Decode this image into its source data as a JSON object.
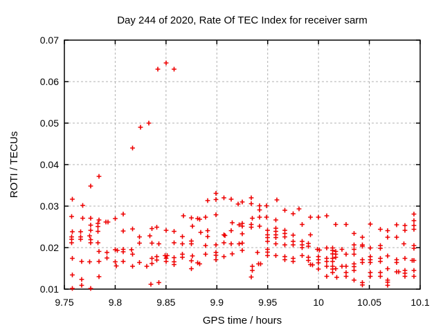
{
  "chart_data": {
    "type": "scatter",
    "title": "Day 244 of 2020, Rate Of TEC Index for receiver sarm",
    "xlabel": "GPS time / hours",
    "ylabel": "ROTI / TECUs",
    "xlim": [
      9.75,
      10.1
    ],
    "ylim": [
      0.01,
      0.07
    ],
    "grid": "dashed",
    "legend": "none",
    "marker": "plus",
    "marker_color": "#ee0000",
    "grid_color": "#b0b0b0",
    "border_color": "#000000",
    "background_color": "#ffffff",
    "x_ticks": [
      [
        9.75,
        "9.75"
      ],
      [
        9.8,
        "9.8"
      ],
      [
        9.85,
        "9.85"
      ],
      [
        9.9,
        "9.9"
      ],
      [
        9.95,
        "9.95"
      ],
      [
        10.0,
        "10"
      ],
      [
        10.05,
        "10.05"
      ],
      [
        10.1,
        "10.1"
      ]
    ],
    "y_ticks": [
      [
        0.01,
        "0.01"
      ],
      [
        0.02,
        "0.02"
      ],
      [
        0.03,
        "0.03"
      ],
      [
        0.04,
        "0.04"
      ],
      [
        0.05,
        "0.05"
      ],
      [
        0.06,
        "0.06"
      ],
      [
        0.07,
        "0.07"
      ]
    ],
    "series_name": "ROTI",
    "points": [
      [
        9.85,
        0.0645
      ],
      [
        9.842,
        0.063
      ],
      [
        9.858,
        0.063
      ],
      [
        9.833,
        0.05
      ],
      [
        9.825,
        0.049
      ],
      [
        9.817,
        0.044
      ],
      [
        9.784,
        0.0372
      ],
      [
        9.776,
        0.0348
      ],
      [
        9.758,
        0.0317
      ],
      [
        9.768,
        0.0302
      ],
      [
        9.757,
        0.0275
      ],
      [
        9.768,
        0.0271
      ],
      [
        9.776,
        0.0271
      ],
      [
        9.784,
        0.0267
      ],
      [
        9.791,
        0.0262
      ],
      [
        9.793,
        0.0262
      ],
      [
        9.8,
        0.027
      ],
      [
        9.808,
        0.0281
      ],
      [
        9.776,
        0.0254
      ],
      [
        9.783,
        0.0258
      ],
      [
        9.783,
        0.0251
      ],
      [
        9.758,
        0.0238
      ],
      [
        9.766,
        0.0238
      ],
      [
        9.776,
        0.0242
      ],
      [
        9.783,
        0.0239
      ],
      [
        9.775,
        0.0228
      ],
      [
        9.808,
        0.024
      ],
      [
        9.817,
        0.0245
      ],
      [
        9.757,
        0.0226
      ],
      [
        9.757,
        0.022
      ],
      [
        9.766,
        0.0226
      ],
      [
        9.766,
        0.022
      ],
      [
        9.776,
        0.0219
      ],
      [
        9.783,
        0.0212
      ],
      [
        9.776,
        0.0212
      ],
      [
        9.757,
        0.0212
      ],
      [
        9.784,
        0.0191
      ],
      [
        9.792,
        0.0188
      ],
      [
        9.792,
        0.0175
      ],
      [
        9.8,
        0.0195
      ],
      [
        9.802,
        0.0193
      ],
      [
        9.808,
        0.0196
      ],
      [
        9.808,
        0.019
      ],
      [
        9.816,
        0.0195
      ],
      [
        9.817,
        0.0184
      ],
      [
        9.824,
        0.0226
      ],
      [
        9.824,
        0.0211
      ],
      [
        9.834,
        0.0228
      ],
      [
        9.758,
        0.0174
      ],
      [
        9.767,
        0.0167
      ],
      [
        9.775,
        0.0166
      ],
      [
        9.784,
        0.0167
      ],
      [
        9.8,
        0.0166
      ],
      [
        9.801,
        0.0156
      ],
      [
        9.808,
        0.0167
      ],
      [
        9.817,
        0.0155
      ],
      [
        9.824,
        0.0164
      ],
      [
        9.831,
        0.0155
      ],
      [
        9.758,
        0.0134
      ],
      [
        9.784,
        0.013
      ],
      [
        9.767,
        0.0123
      ],
      [
        9.767,
        0.0109
      ],
      [
        9.758,
        0.0102
      ],
      [
        9.776,
        0.0102
      ],
      [
        9.835,
        0.0112
      ],
      [
        9.899,
        0.0331
      ],
      [
        9.891,
        0.0313
      ],
      [
        9.899,
        0.0316
      ],
      [
        9.907,
        0.032
      ],
      [
        9.914,
        0.0317
      ],
      [
        9.921,
        0.0305
      ],
      [
        9.867,
        0.0277
      ],
      [
        9.875,
        0.0272
      ],
      [
        9.881,
        0.027
      ],
      [
        9.883,
        0.0268
      ],
      [
        9.889,
        0.0273
      ],
      [
        9.899,
        0.0279
      ],
      [
        9.876,
        0.0252
      ],
      [
        9.841,
        0.0249
      ],
      [
        9.85,
        0.0242
      ],
      [
        9.858,
        0.0239
      ],
      [
        9.884,
        0.0237
      ],
      [
        9.891,
        0.0241
      ],
      [
        9.891,
        0.0227
      ],
      [
        9.866,
        0.0227
      ],
      [
        9.915,
        0.026
      ],
      [
        9.922,
        0.0255
      ],
      [
        9.907,
        0.0231
      ],
      [
        9.908,
        0.0229
      ],
      [
        9.914,
        0.0241
      ],
      [
        9.836,
        0.0246
      ],
      [
        9.843,
        0.0209
      ],
      [
        9.836,
        0.0211
      ],
      [
        9.858,
        0.0212
      ],
      [
        9.866,
        0.0209
      ],
      [
        9.875,
        0.0216
      ],
      [
        9.875,
        0.0209
      ],
      [
        9.889,
        0.0205
      ],
      [
        9.899,
        0.0207
      ],
      [
        9.907,
        0.0212
      ],
      [
        9.914,
        0.0209
      ],
      [
        9.922,
        0.0209
      ],
      [
        9.915,
        0.0185
      ],
      [
        9.899,
        0.0188
      ],
      [
        9.899,
        0.0182
      ],
      [
        9.889,
        0.0184
      ],
      [
        9.876,
        0.018
      ],
      [
        9.866,
        0.0184
      ],
      [
        9.866,
        0.0177
      ],
      [
        9.858,
        0.0176
      ],
      [
        9.849,
        0.0181
      ],
      [
        9.851,
        0.0181
      ],
      [
        9.85,
        0.0174
      ],
      [
        9.85,
        0.0167
      ],
      [
        9.841,
        0.0178
      ],
      [
        9.841,
        0.017
      ],
      [
        9.836,
        0.0174
      ],
      [
        9.836,
        0.0162
      ],
      [
        9.858,
        0.0166
      ],
      [
        9.858,
        0.0159
      ],
      [
        9.875,
        0.0168
      ],
      [
        9.881,
        0.0163
      ],
      [
        9.883,
        0.0161
      ],
      [
        9.899,
        0.0171
      ],
      [
        9.907,
        0.0178
      ],
      [
        9.875,
        0.0149
      ],
      [
        9.843,
        0.0116
      ],
      [
        9.934,
        0.032
      ],
      [
        9.925,
        0.031
      ],
      [
        9.934,
        0.0306
      ],
      [
        9.942,
        0.0301
      ],
      [
        9.949,
        0.0301
      ],
      [
        9.959,
        0.0315
      ],
      [
        9.942,
        0.0291
      ],
      [
        9.967,
        0.029
      ],
      [
        9.975,
        0.0282
      ],
      [
        9.981,
        0.0293
      ],
      [
        9.935,
        0.0271
      ],
      [
        9.942,
        0.0273
      ],
      [
        9.949,
        0.0273
      ],
      [
        9.958,
        0.0267
      ],
      [
        9.992,
        0.0273
      ],
      [
        10.0,
        0.0273
      ],
      [
        10.008,
        0.0277
      ],
      [
        9.925,
        0.0258
      ],
      [
        9.925,
        0.0252
      ],
      [
        9.934,
        0.0256
      ],
      [
        9.934,
        0.0249
      ],
      [
        9.942,
        0.0252
      ],
      [
        9.95,
        0.0242
      ],
      [
        9.958,
        0.0247
      ],
      [
        9.958,
        0.0239
      ],
      [
        9.967,
        0.0242
      ],
      [
        9.984,
        0.0256
      ],
      [
        9.925,
        0.0233
      ],
      [
        9.95,
        0.0231
      ],
      [
        9.95,
        0.0224
      ],
      [
        9.958,
        0.0231
      ],
      [
        9.958,
        0.0224
      ],
      [
        9.967,
        0.0234
      ],
      [
        9.967,
        0.0226
      ],
      [
        9.975,
        0.023
      ],
      [
        9.992,
        0.0231
      ],
      [
        9.925,
        0.0211
      ],
      [
        9.95,
        0.0215
      ],
      [
        9.95,
        0.0196
      ],
      [
        9.95,
        0.0189
      ],
      [
        9.958,
        0.0209
      ],
      [
        9.967,
        0.0207
      ],
      [
        9.975,
        0.0215
      ],
      [
        9.975,
        0.0207
      ],
      [
        9.984,
        0.0215
      ],
      [
        9.984,
        0.0207
      ],
      [
        9.984,
        0.02
      ],
      [
        9.99,
        0.021
      ],
      [
        9.99,
        0.0203
      ],
      [
        9.999,
        0.0196
      ],
      [
        10.001,
        0.0194
      ],
      [
        10.008,
        0.0199
      ],
      [
        9.925,
        0.0193
      ],
      [
        9.94,
        0.0188
      ],
      [
        9.95,
        0.0181
      ],
      [
        9.958,
        0.0181
      ],
      [
        9.967,
        0.0178
      ],
      [
        9.967,
        0.0171
      ],
      [
        9.975,
        0.0174
      ],
      [
        9.975,
        0.0167
      ],
      [
        9.984,
        0.0181
      ],
      [
        9.99,
        0.0177
      ],
      [
        9.99,
        0.0169
      ],
      [
        10.0,
        0.0178
      ],
      [
        10.0,
        0.0171
      ],
      [
        10.008,
        0.0174
      ],
      [
        10.008,
        0.0167
      ],
      [
        9.992,
        0.0159
      ],
      [
        9.994,
        0.0158
      ],
      [
        10.0,
        0.0163
      ],
      [
        10.008,
        0.0155
      ],
      [
        9.941,
        0.0161
      ],
      [
        9.943,
        0.0161
      ],
      [
        9.935,
        0.0155
      ],
      [
        9.935,
        0.0145
      ],
      [
        9.934,
        0.0129
      ],
      [
        10.008,
        0.0131
      ],
      [
        10.0,
        0.0148
      ],
      [
        10.017,
        0.0256
      ],
      [
        10.027,
        0.0256
      ],
      [
        10.051,
        0.0257
      ],
      [
        10.061,
        0.0244
      ],
      [
        10.068,
        0.0241
      ],
      [
        10.077,
        0.0255
      ],
      [
        10.085,
        0.0253
      ],
      [
        10.085,
        0.0242
      ],
      [
        10.094,
        0.0281
      ],
      [
        10.094,
        0.0265
      ],
      [
        10.094,
        0.0253
      ],
      [
        10.094,
        0.0244
      ],
      [
        10.035,
        0.0234
      ],
      [
        10.043,
        0.0225
      ],
      [
        10.068,
        0.0225
      ],
      [
        10.077,
        0.0225
      ],
      [
        10.035,
        0.0207
      ],
      [
        10.043,
        0.0207
      ],
      [
        10.043,
        0.0203
      ],
      [
        10.014,
        0.0199
      ],
      [
        10.014,
        0.0193
      ],
      [
        10.014,
        0.0185
      ],
      [
        10.023,
        0.0196
      ],
      [
        10.035,
        0.0196
      ],
      [
        10.051,
        0.0199
      ],
      [
        10.061,
        0.0205
      ],
      [
        10.061,
        0.0198
      ],
      [
        10.084,
        0.0209
      ],
      [
        10.094,
        0.0205
      ],
      [
        10.094,
        0.0198
      ],
      [
        10.017,
        0.0191
      ],
      [
        10.017,
        0.0184
      ],
      [
        10.017,
        0.0177
      ],
      [
        10.027,
        0.0184
      ],
      [
        10.035,
        0.0184
      ],
      [
        10.043,
        0.0171
      ],
      [
        10.043,
        0.0164
      ],
      [
        10.051,
        0.0178
      ],
      [
        10.051,
        0.0171
      ],
      [
        10.051,
        0.0164
      ],
      [
        10.061,
        0.0174
      ],
      [
        10.061,
        0.0167
      ],
      [
        10.068,
        0.018
      ],
      [
        10.068,
        0.0149
      ],
      [
        10.077,
        0.0171
      ],
      [
        10.077,
        0.0164
      ],
      [
        10.077,
        0.0142
      ],
      [
        10.079,
        0.0142
      ],
      [
        10.085,
        0.0174
      ],
      [
        10.092,
        0.0169
      ],
      [
        10.094,
        0.0169
      ],
      [
        10.085,
        0.0145
      ],
      [
        10.085,
        0.0138
      ],
      [
        10.085,
        0.0131
      ],
      [
        10.094,
        0.0145
      ],
      [
        10.094,
        0.0131
      ],
      [
        10.014,
        0.0174
      ],
      [
        10.014,
        0.0167
      ],
      [
        10.014,
        0.0155
      ],
      [
        10.014,
        0.0148
      ],
      [
        10.014,
        0.014
      ],
      [
        10.023,
        0.0155
      ],
      [
        10.027,
        0.0155
      ],
      [
        10.027,
        0.014
      ],
      [
        10.027,
        0.0131
      ],
      [
        10.035,
        0.0161
      ],
      [
        10.035,
        0.0154
      ],
      [
        10.035,
        0.0145
      ],
      [
        10.035,
        0.0122
      ],
      [
        10.043,
        0.0116
      ],
      [
        10.043,
        0.011
      ],
      [
        10.051,
        0.014
      ],
      [
        10.051,
        0.0131
      ],
      [
        10.061,
        0.014
      ],
      [
        10.061,
        0.0131
      ],
      [
        10.068,
        0.0122
      ],
      [
        10.068,
        0.0117
      ],
      [
        10.068,
        0.0109
      ],
      [
        10.017,
        0.0149
      ],
      [
        10.018,
        0.0128
      ]
    ]
  }
}
